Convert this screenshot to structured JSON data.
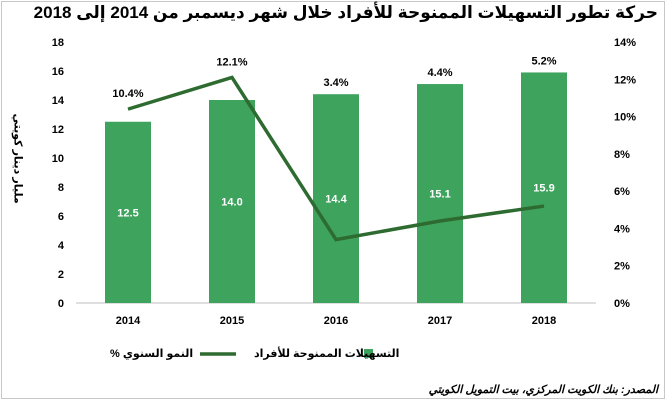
{
  "title": "حركة تطور التسهيلات الممنوحة للأفراد خلال شهر  ديسمبر من 2014 إلى 2018",
  "source": "المصدر: بنك الكويت المركزي، بيت التمويل الكويتي",
  "colors": {
    "bar": "#3da35d",
    "line": "#2e6b30"
  },
  "chart_data": {
    "type": "bar",
    "categories": [
      "2014",
      "2015",
      "2016",
      "2017",
      "2018"
    ],
    "ylabel": "مليار دينار كويتي",
    "ylim": [
      0,
      18
    ],
    "y_ticks": [
      "0",
      "2",
      "4",
      "6",
      "8",
      "10",
      "12",
      "14",
      "16",
      "18"
    ],
    "y2lim": [
      0,
      14
    ],
    "y2_ticks": [
      "0%",
      "2%",
      "4%",
      "6%",
      "8%",
      "10%",
      "12%",
      "14%"
    ],
    "grid": false,
    "legend_position": "bottom",
    "series": [
      {
        "name": "التسهيلات الممنوحة للأفراد",
        "type": "bar",
        "axis": "left",
        "values": [
          12.5,
          14.0,
          14.4,
          15.1,
          15.9
        ],
        "labels": [
          "12.5",
          "14.0",
          "14.4",
          "15.1",
          "15.9"
        ]
      },
      {
        "name": "% النمو السنوي",
        "type": "line",
        "axis": "right",
        "values": [
          10.4,
          12.1,
          3.4,
          4.4,
          5.2
        ],
        "labels": [
          "10.4%",
          "12.1%",
          "3.4%",
          "4.4%",
          "5.2%"
        ]
      }
    ]
  }
}
